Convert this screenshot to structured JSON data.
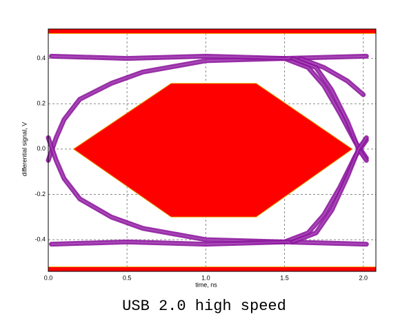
{
  "chart_data": {
    "type": "eye",
    "caption": "USB 2.0 high speed",
    "x_label": "time, ns",
    "y_label": "differential signal, V",
    "xlim": [
      0,
      2.08
    ],
    "ylim": [
      -0.54,
      0.53
    ],
    "xticks": [
      {
        "value": 0,
        "label": "0.0"
      },
      0.5,
      {
        "value": 1,
        "label": "1.0"
      },
      1.5,
      {
        "value": 2,
        "label": "2.0"
      }
    ],
    "yticks": [
      0.4,
      0.2,
      {
        "value": 0,
        "label": "0.0"
      },
      -0.2,
      -0.4
    ],
    "grid": true,
    "mask_color": "#ff0000",
    "mask_edge_color": "#e8a000",
    "masks": [
      {
        "x": [
          0.16,
          0.78,
          1.32,
          1.93,
          1.32,
          0.78
        ],
        "y": [
          0,
          0.29,
          0.29,
          0,
          -0.3,
          -0.3
        ]
      },
      {
        "x": [
          0,
          2.08,
          2.08,
          0
        ],
        "y": [
          0.53,
          0.53,
          0.51,
          0.51
        ]
      },
      {
        "x": [
          0,
          2.08,
          2.08,
          0
        ],
        "y": [
          -0.52,
          -0.52,
          -0.54,
          -0.54
        ]
      }
    ],
    "trace_color": "#8e1a9e",
    "traces": [
      {
        "x": [
          0.0,
          0.05,
          0.1,
          0.2,
          0.4,
          0.6,
          1.0,
          1.5,
          1.65,
          1.75,
          1.85,
          1.95,
          2.02
        ],
        "y": [
          -0.05,
          0.05,
          0.13,
          0.22,
          0.29,
          0.34,
          0.39,
          0.4,
          0.36,
          0.28,
          0.16,
          0.03,
          -0.04
        ]
      },
      {
        "x": [
          0.0,
          0.05,
          0.1,
          0.2,
          0.4,
          0.6,
          1.0,
          1.5,
          1.65,
          1.75,
          1.85,
          1.95,
          2.02
        ],
        "y": [
          0.05,
          -0.05,
          -0.13,
          -0.22,
          -0.3,
          -0.35,
          -0.4,
          -0.41,
          -0.37,
          -0.29,
          -0.17,
          -0.03,
          0.04
        ]
      },
      {
        "x": [
          0.02,
          0.5,
          1.0,
          1.5,
          2.02
        ],
        "y": [
          0.41,
          0.4,
          0.41,
          0.4,
          0.41
        ]
      },
      {
        "x": [
          0.02,
          0.5,
          1.0,
          1.5,
          2.02
        ],
        "y": [
          -0.42,
          -0.41,
          -0.42,
          -0.41,
          -0.42
        ]
      },
      {
        "x": [
          1.55,
          1.7,
          1.8,
          1.9,
          1.97,
          2.02
        ],
        "y": [
          0.4,
          0.36,
          0.26,
          0.12,
          0.0,
          -0.05
        ]
      },
      {
        "x": [
          1.55,
          1.7,
          1.8,
          1.9,
          1.97,
          2.02
        ],
        "y": [
          -0.41,
          -0.37,
          -0.27,
          -0.12,
          0.0,
          0.05
        ]
      },
      {
        "x": [
          1.6,
          1.75,
          1.9,
          2.0
        ],
        "y": [
          0.4,
          0.36,
          0.3,
          0.24
        ]
      }
    ]
  }
}
